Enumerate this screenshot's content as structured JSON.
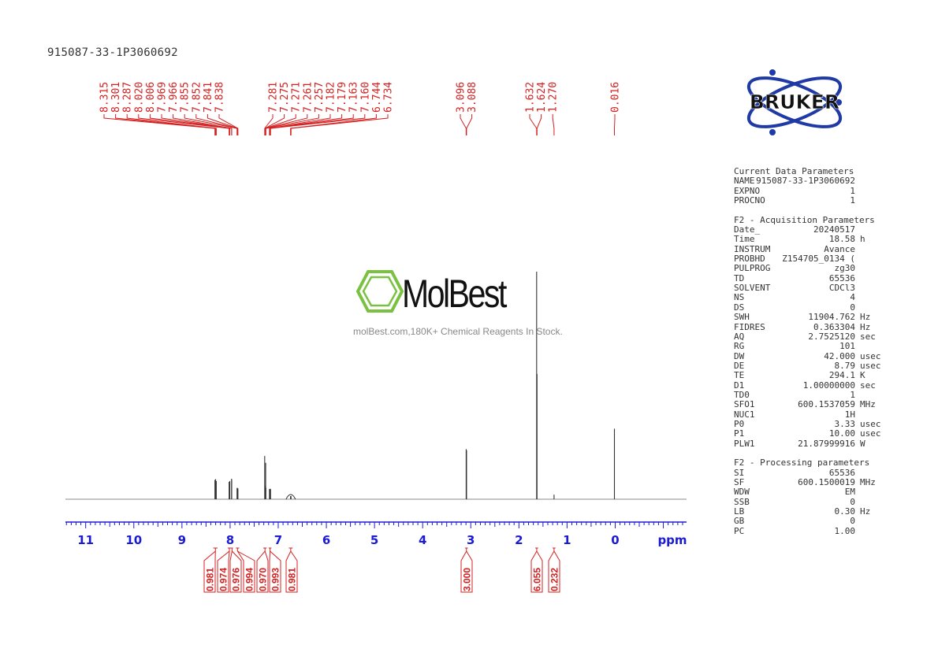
{
  "sample_title": "915087-33-1P3060692",
  "watermark": {
    "brand": "MolBest",
    "tagline": "molBest.com,180K+ Chemical Reagents In Stock."
  },
  "bruker_logo_text": "BRUKER",
  "colors": {
    "axis": "#1b1bd6",
    "annotation": "#d42020",
    "spectrum": "#333333",
    "logo_ring": "#1f3aa5",
    "watermark_green": "#7ac142"
  },
  "parameters": [
    {
      "title": "Current Data Parameters",
      "rows": [
        {
          "key": "NAME",
          "value": "915087-33-1P3060692",
          "unit": ""
        },
        {
          "key": "EXPNO",
          "value": "1",
          "unit": ""
        },
        {
          "key": "PROCNO",
          "value": "1",
          "unit": ""
        }
      ]
    },
    {
      "title": "F2 - Acquisition Parameters",
      "rows": [
        {
          "key": "Date_",
          "value": "20240517",
          "unit": ""
        },
        {
          "key": "Time",
          "value": "18.58",
          "unit": "h"
        },
        {
          "key": "INSTRUM",
          "value": "Avance",
          "unit": ""
        },
        {
          "key": "PROBHD",
          "value": "Z154705_0134 (",
          "unit": ""
        },
        {
          "key": "PULPROG",
          "value": "zg30",
          "unit": ""
        },
        {
          "key": "TD",
          "value": "65536",
          "unit": ""
        },
        {
          "key": "SOLVENT",
          "value": "CDCl3",
          "unit": ""
        },
        {
          "key": "NS",
          "value": "4",
          "unit": ""
        },
        {
          "key": "DS",
          "value": "0",
          "unit": ""
        },
        {
          "key": "SWH",
          "value": "11904.762",
          "unit": "Hz"
        },
        {
          "key": "FIDRES",
          "value": "0.363304",
          "unit": "Hz"
        },
        {
          "key": "AQ",
          "value": "2.7525120",
          "unit": "sec"
        },
        {
          "key": "RG",
          "value": "101",
          "unit": ""
        },
        {
          "key": "DW",
          "value": "42.000",
          "unit": "usec"
        },
        {
          "key": "DE",
          "value": "8.79",
          "unit": "usec"
        },
        {
          "key": "TE",
          "value": "294.1",
          "unit": "K"
        },
        {
          "key": "D1",
          "value": "1.00000000",
          "unit": "sec"
        },
        {
          "key": "TD0",
          "value": "1",
          "unit": ""
        },
        {
          "key": "SFO1",
          "value": "600.1537059",
          "unit": "MHz"
        },
        {
          "key": "NUC1",
          "value": "1H",
          "unit": ""
        },
        {
          "key": "P0",
          "value": "3.33",
          "unit": "usec"
        },
        {
          "key": "P1",
          "value": "10.00",
          "unit": "usec"
        },
        {
          "key": "PLW1",
          "value": "21.87999916",
          "unit": "W"
        }
      ]
    },
    {
      "title": "F2 - Processing parameters",
      "rows": [
        {
          "key": "SI",
          "value": "65536",
          "unit": ""
        },
        {
          "key": "SF",
          "value": "600.1500019",
          "unit": "MHz"
        },
        {
          "key": "WDW",
          "value": "EM",
          "unit": ""
        },
        {
          "key": "SSB",
          "value": "0",
          "unit": ""
        },
        {
          "key": "LB",
          "value": "0.30",
          "unit": "Hz"
        },
        {
          "key": "GB",
          "value": "0",
          "unit": ""
        },
        {
          "key": "PC",
          "value": "1.00",
          "unit": ""
        }
      ]
    }
  ],
  "chart_data": {
    "type": "line",
    "xlabel": "ppm",
    "x_reversed": true,
    "xlim": [
      11.4,
      -1.5
    ],
    "major_ticks": [
      11,
      10,
      9,
      8,
      7,
      6,
      5,
      4,
      3,
      2,
      1,
      0
    ],
    "peak_labels": [
      {
        "group": 1,
        "labels": [
          "8.315",
          "8.301",
          "8.287",
          "8.020",
          "8.006",
          "7.969",
          "7.966",
          "7.855",
          "7.852",
          "7.841",
          "7.838"
        ]
      },
      {
        "group": 2,
        "labels": [
          "7.281",
          "7.275",
          "7.271",
          "7.261",
          "7.257",
          "7.182",
          "7.179",
          "7.163",
          "7.160",
          "6.744",
          "6.734"
        ]
      },
      {
        "group": 3,
        "labels": [
          "3.096",
          "3.088"
        ]
      },
      {
        "group": 4,
        "labels": [
          "1.632",
          "1.624",
          "1.270"
        ]
      },
      {
        "group": 5,
        "labels": [
          "0.016"
        ]
      }
    ],
    "peaks": [
      {
        "ppm": 8.315,
        "height": 0.085
      },
      {
        "ppm": 8.301,
        "height": 0.088
      },
      {
        "ppm": 8.287,
        "height": 0.08
      },
      {
        "ppm": 8.02,
        "height": 0.076
      },
      {
        "ppm": 8.006,
        "height": 0.08
      },
      {
        "ppm": 7.969,
        "height": 0.09
      },
      {
        "ppm": 7.966,
        "height": 0.086
      },
      {
        "ppm": 7.855,
        "height": 0.048
      },
      {
        "ppm": 7.852,
        "height": 0.05
      },
      {
        "ppm": 7.841,
        "height": 0.048
      },
      {
        "ppm": 7.838,
        "height": 0.046
      },
      {
        "ppm": 7.281,
        "height": 0.19
      },
      {
        "ppm": 7.275,
        "height": 0.06
      },
      {
        "ppm": 7.271,
        "height": 0.055
      },
      {
        "ppm": 7.261,
        "height": 0.16
      },
      {
        "ppm": 7.257,
        "height": 0.05
      },
      {
        "ppm": 7.182,
        "height": 0.045
      },
      {
        "ppm": 7.179,
        "height": 0.044
      },
      {
        "ppm": 7.163,
        "height": 0.046
      },
      {
        "ppm": 7.16,
        "height": 0.043
      },
      {
        "ppm": 6.744,
        "height": 0.014
      },
      {
        "ppm": 6.734,
        "height": 0.014
      },
      {
        "ppm": 3.096,
        "height": 0.22
      },
      {
        "ppm": 3.088,
        "height": 0.215
      },
      {
        "ppm": 1.632,
        "height": 1.0
      },
      {
        "ppm": 1.624,
        "height": 0.55
      },
      {
        "ppm": 1.27,
        "height": 0.02
      },
      {
        "ppm": 0.016,
        "height": 0.31
      }
    ],
    "integrals": [
      {
        "value": "0.981",
        "from": 8.35,
        "to": 8.26
      },
      {
        "value": "0.974",
        "from": 8.05,
        "to": 7.98
      },
      {
        "value": "0.976",
        "from": 7.98,
        "to": 7.94
      },
      {
        "value": "0.994",
        "from": 7.88,
        "to": 7.81
      },
      {
        "value": "0.970",
        "from": 7.31,
        "to": 7.24
      },
      {
        "value": "0.993",
        "from": 7.2,
        "to": 7.14
      },
      {
        "value": "0.981",
        "from": 6.78,
        "to": 6.7
      },
      {
        "value": "3.000",
        "from": 3.12,
        "to": 3.06
      },
      {
        "value": "6.055",
        "from": 1.66,
        "to": 1.6
      },
      {
        "value": "0.232",
        "from": 1.3,
        "to": 1.24
      }
    ]
  }
}
